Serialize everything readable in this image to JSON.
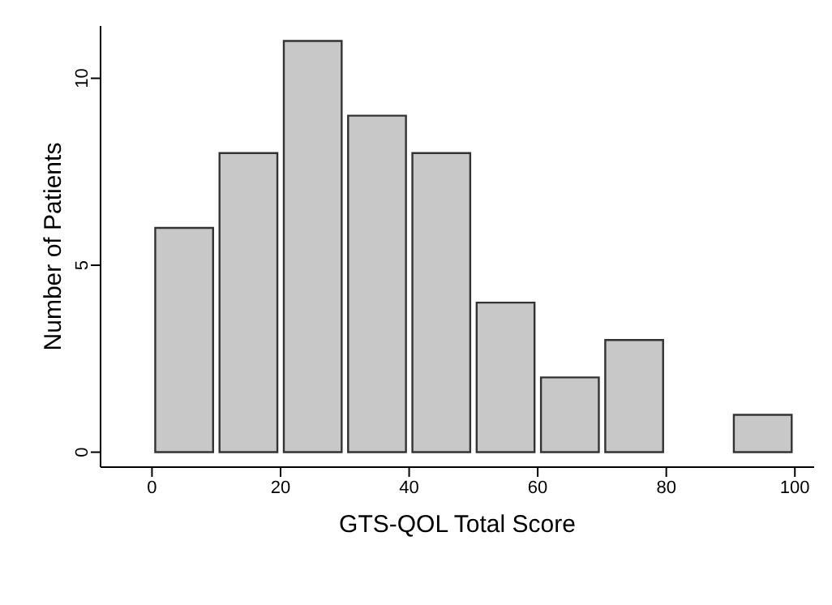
{
  "chart_data": {
    "type": "histogram",
    "xlabel": "GTS-QOL Total Score",
    "ylabel": "Number of Patients",
    "bins": [
      0,
      10,
      20,
      30,
      40,
      50,
      60,
      70,
      80,
      90,
      100
    ],
    "values": [
      6,
      8,
      11,
      9,
      8,
      4,
      2,
      3,
      0,
      1
    ],
    "color": "#c8c8c8",
    "xlim": [
      -8,
      103
    ],
    "xticks": [
      0,
      20,
      40,
      60,
      80,
      100
    ],
    "ylim": [
      -0.4,
      11.4
    ],
    "yticks": [
      0,
      5,
      10
    ],
    "grid": false
  }
}
